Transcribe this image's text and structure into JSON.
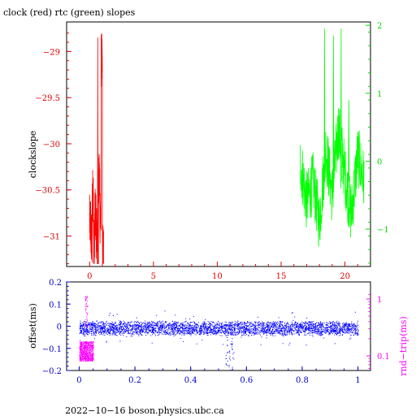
{
  "chart_data": [
    {
      "type": "line",
      "title": "clock (red) rtc (green) slopes",
      "ylabel": "clockslope",
      "x_ticks": [
        "0",
        "5",
        "10",
        "15",
        "20"
      ],
      "xlim": [
        -1.8,
        22.0
      ],
      "left_axis": {
        "ticks": [
          "−29",
          "−29.5",
          "−30",
          "−30.5",
          "−31"
        ],
        "ylim": [
          -31.33,
          -28.68
        ],
        "color": "#e00000"
      },
      "right_axis": {
        "ticks": [
          "2",
          "1",
          "0",
          "−1"
        ],
        "ylim": [
          -1.55,
          2.05
        ],
        "color": "#00dd00"
      },
      "series": [
        {
          "color": "#ff0000",
          "axis": "left",
          "x": [
            0.0,
            0.1,
            0.2,
            0.3,
            0.4,
            0.5,
            0.6,
            0.7,
            0.8,
            0.9,
            1.0,
            1.1
          ],
          "y": [
            -30.85,
            -31.05,
            -30.55,
            -31.1,
            -30.75,
            -30.95,
            -31.2,
            -30.4,
            -30.8,
            -29.1,
            -31.15,
            -30.9
          ]
        },
        {
          "color": "#00ff00",
          "axis": "right",
          "x": [
            16.5,
            17.0,
            17.5,
            18.0,
            18.5,
            19.0,
            19.5,
            20.0,
            20.5,
            21.0,
            21.5
          ],
          "y": [
            0.0,
            -0.6,
            -0.3,
            -0.9,
            0.2,
            -0.5,
            0.5,
            -0.2,
            -0.8,
            0.1,
            -0.3
          ]
        }
      ]
    },
    {
      "type": "scatter",
      "ylabel": "offset(ms)",
      "y2label": "rnd−trip(ms)",
      "x_ticks": [
        "0",
        "0.2",
        "0.4",
        "0.6",
        "0.8",
        "1"
      ],
      "xlim": [
        -0.045,
        1.045
      ],
      "y_ticks": [
        "0.2",
        "0.1",
        "0",
        "−0.1",
        "−0.2"
      ],
      "ylim": [
        -0.2,
        0.2
      ],
      "y2_ticks": [
        "1",
        "0.1"
      ],
      "y2_scale": "log",
      "series": [
        {
          "color": "#0000ff",
          "axis": "left",
          "approx_level": -0.01
        },
        {
          "color": "#ff00ff",
          "axis": "right",
          "x_range": [
            0.0,
            0.05
          ],
          "approx_level": 0.12
        }
      ]
    }
  ],
  "footer": "2022−10−16 boson.physics.ubc.ca"
}
